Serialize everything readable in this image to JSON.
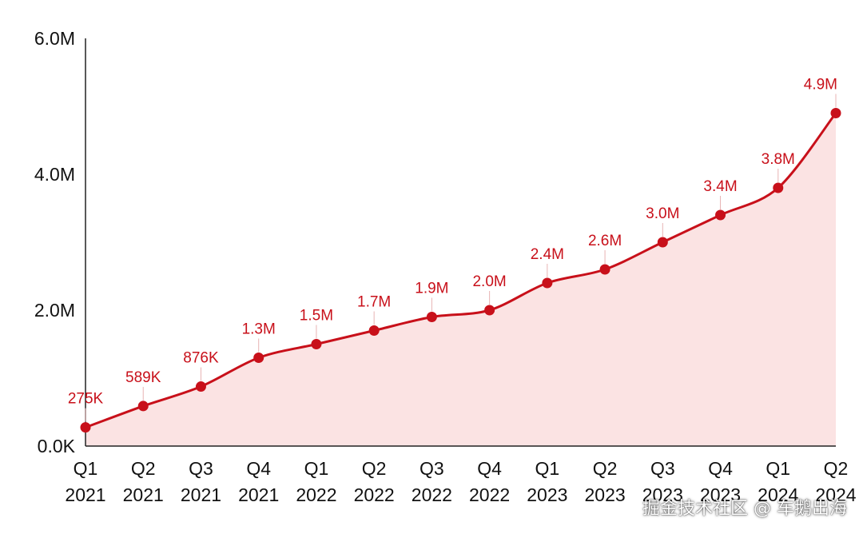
{
  "colors": {
    "line": "#c8101a",
    "fill": "#fbe3e3",
    "axis": "#222222",
    "text": "#111111"
  },
  "chart_data": {
    "type": "area",
    "categories": [
      [
        "Q1",
        "2021"
      ],
      [
        "Q2",
        "2021"
      ],
      [
        "Q3",
        "2021"
      ],
      [
        "Q4",
        "2021"
      ],
      [
        "Q1",
        "2022"
      ],
      [
        "Q2",
        "2022"
      ],
      [
        "Q3",
        "2022"
      ],
      [
        "Q4",
        "2022"
      ],
      [
        "Q1",
        "2023"
      ],
      [
        "Q2",
        "2023"
      ],
      [
        "Q3",
        "2023"
      ],
      [
        "Q4",
        "2023"
      ],
      [
        "Q1",
        "2024"
      ],
      [
        "Q2",
        "2024"
      ]
    ],
    "values": [
      275000,
      589000,
      876000,
      1300000,
      1500000,
      1700000,
      1900000,
      2000000,
      2400000,
      2600000,
      3000000,
      3400000,
      3800000,
      4900000
    ],
    "data_labels": [
      "275K",
      "589K",
      "876K",
      "1.3M",
      "1.5M",
      "1.7M",
      "1.9M",
      "2.0M",
      "2.4M",
      "2.6M",
      "3.0M",
      "3.4M",
      "3.8M",
      "4.9M"
    ],
    "yticks": [
      {
        "value": 0,
        "label": "0.0K"
      },
      {
        "value": 2000000,
        "label": "2.0M"
      },
      {
        "value": 4000000,
        "label": "4.0M"
      },
      {
        "value": 6000000,
        "label": "6.0M"
      }
    ],
    "ylim": [
      0,
      6000000
    ],
    "title": "",
    "xlabel": "",
    "ylabel": "",
    "grid": false,
    "legend": "none"
  },
  "watermark": "掘金技术社区 @ 车鹅出海"
}
